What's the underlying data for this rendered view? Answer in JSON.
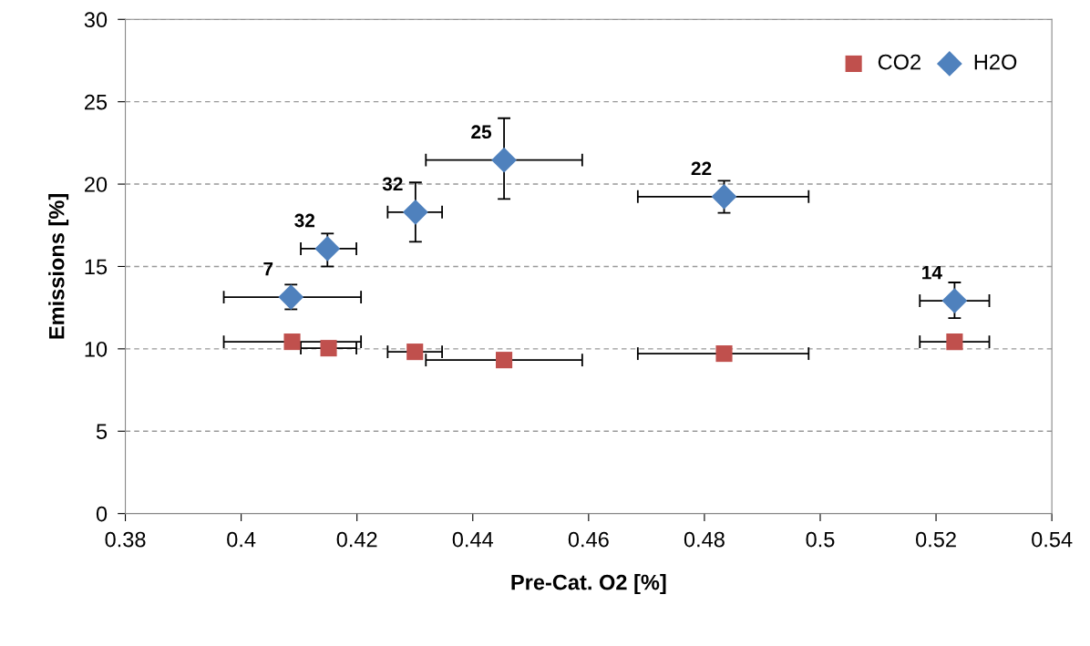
{
  "chart_data": {
    "type": "scatter",
    "xlabel": "Pre-Cat. O2 [%]",
    "ylabel": "Emissions [%]",
    "xlim": [
      0.38,
      0.54
    ],
    "xticks": [
      0.38,
      0.4,
      0.42,
      0.44,
      0.46,
      0.48,
      0.5,
      0.52,
      0.54
    ],
    "ylim": [
      0,
      30
    ],
    "yticks": [
      0,
      5,
      10,
      15,
      20,
      25,
      30
    ],
    "grid": "y",
    "legend": "top right",
    "series": [
      {
        "name": "CO2",
        "color": "#c0504d",
        "marker": "square",
        "x": [
          0.4088,
          0.4151,
          0.43,
          0.4454,
          0.4834,
          0.5232
        ],
        "values": [
          10.43,
          10.04,
          9.82,
          9.32,
          9.71,
          10.43
        ],
        "xerrors": [
          [
            0.397,
            0.4207
          ],
          [
            0.4103,
            0.4199
          ],
          [
            0.4253,
            0.4347
          ],
          [
            0.4319,
            0.4589
          ],
          [
            0.4685,
            0.498
          ],
          [
            0.5172,
            0.5292
          ]
        ]
      },
      {
        "name": "H2O",
        "color": "#4f81bd",
        "marker": "diamond",
        "x": [
          0.4086,
          0.4149,
          0.4301,
          0.4454,
          0.4834,
          0.5232
        ],
        "values": [
          13.14,
          16.08,
          18.3,
          21.46,
          19.24,
          12.92
        ],
        "xerrors": [
          [
            0.397,
            0.4207
          ],
          [
            0.4103,
            0.4199
          ],
          [
            0.4253,
            0.4347
          ],
          [
            0.4319,
            0.4589
          ],
          [
            0.4685,
            0.498
          ],
          [
            0.5172,
            0.5292
          ]
        ],
        "errors": [
          [
            12.4,
            13.9
          ],
          [
            15.0,
            17.0
          ],
          [
            16.5,
            20.1
          ],
          [
            19.1,
            24.0
          ],
          [
            18.25,
            20.2
          ],
          [
            11.87,
            14.03
          ]
        ]
      }
    ],
    "annotations": [
      {
        "text": "7",
        "x": 0.4086,
        "y": 13.14
      },
      {
        "text": "32",
        "x": 0.4149,
        "y": 16.08
      },
      {
        "text": "32",
        "x": 0.4301,
        "y": 18.3
      },
      {
        "text": "25",
        "x": 0.4454,
        "y": 21.46
      },
      {
        "text": "22",
        "x": 0.4834,
        "y": 19.24
      },
      {
        "text": "14",
        "x": 0.5232,
        "y": 12.92
      }
    ]
  }
}
